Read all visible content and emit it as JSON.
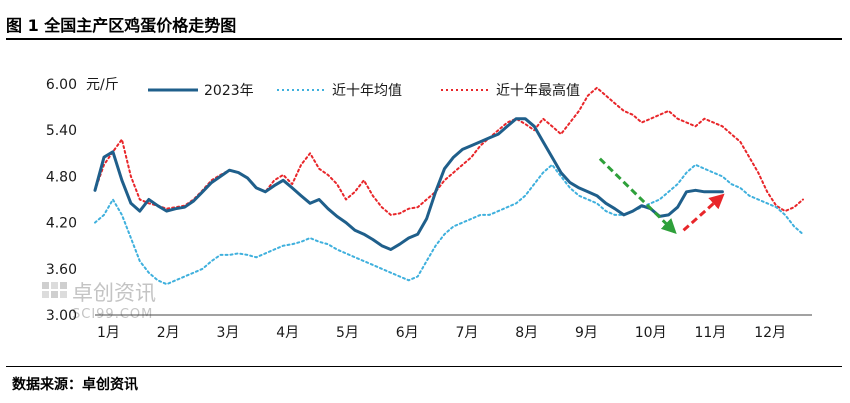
{
  "header": {
    "title": "图 1  全国主产区鸡蛋价格走势图"
  },
  "footer": {
    "source": "数据来源：卓创资讯"
  },
  "watermark": {
    "brand": "卓创资讯",
    "site": "SCI99.COM"
  },
  "chart_data": {
    "type": "line",
    "title": "全国主产区鸡蛋价格走势图",
    "ylabel": "元/斤",
    "ylim": [
      3.0,
      6.0
    ],
    "yticks": [
      "3.00",
      "3.60",
      "4.20",
      "4.80",
      "5.40",
      "6.00"
    ],
    "categories": [
      "1月",
      "2月",
      "3月",
      "4月",
      "5月",
      "6月",
      "7月",
      "8月",
      "9月",
      "10月",
      "11月",
      "12月"
    ],
    "grid": false,
    "legend_position": "top",
    "series": [
      {
        "name": "2023年",
        "color": "#1f5f8b",
        "style": "solid",
        "x": [
          1,
          1.15,
          1.3,
          1.45,
          1.6,
          1.75,
          1.9,
          2.05,
          2.2,
          2.35,
          2.5,
          2.65,
          2.8,
          2.95,
          3.1,
          3.25,
          3.4,
          3.55,
          3.7,
          3.85,
          4.0,
          4.15,
          4.3,
          4.45,
          4.6,
          4.75,
          4.9,
          5.05,
          5.2,
          5.35,
          5.5,
          5.65,
          5.8,
          5.95,
          6.1,
          6.25,
          6.4,
          6.55,
          6.7,
          6.85,
          7.0,
          7.15,
          7.3,
          7.45,
          7.6,
          7.75,
          7.9,
          8.05,
          8.2,
          8.35,
          8.5,
          8.65,
          8.8,
          8.95,
          9.1,
          9.25,
          9.4,
          9.55,
          9.7,
          9.85,
          10.0,
          10.15,
          10.3,
          10.45,
          10.6,
          10.75,
          10.9,
          11.05,
          11.2,
          11.35,
          11.5
        ],
        "values": [
          4.62,
          5.05,
          5.12,
          4.75,
          4.45,
          4.35,
          4.5,
          4.42,
          4.35,
          4.38,
          4.4,
          4.48,
          4.6,
          4.72,
          4.8,
          4.88,
          4.85,
          4.78,
          4.65,
          4.6,
          4.68,
          4.75,
          4.65,
          4.55,
          4.45,
          4.5,
          4.38,
          4.28,
          4.2,
          4.1,
          4.05,
          3.98,
          3.9,
          3.85,
          3.92,
          4.0,
          4.05,
          4.25,
          4.6,
          4.9,
          5.05,
          5.15,
          5.2,
          5.25,
          5.3,
          5.35,
          5.45,
          5.55,
          5.55,
          5.45,
          5.25,
          5.05,
          4.85,
          4.72,
          4.65,
          4.6,
          4.55,
          4.45,
          4.38,
          4.3,
          4.35,
          4.42,
          4.38,
          4.28,
          4.3,
          4.4,
          4.6,
          4.62,
          4.6,
          4.6,
          4.6
        ]
      },
      {
        "name": "近十年均值",
        "color": "#3fb0dd",
        "style": "dotted",
        "x": [
          1,
          1.15,
          1.3,
          1.45,
          1.6,
          1.75,
          1.9,
          2.05,
          2.2,
          2.35,
          2.5,
          2.65,
          2.8,
          2.95,
          3.1,
          3.25,
          3.4,
          3.55,
          3.7,
          3.85,
          4.0,
          4.15,
          4.3,
          4.45,
          4.6,
          4.75,
          4.9,
          5.05,
          5.2,
          5.35,
          5.5,
          5.65,
          5.8,
          5.95,
          6.1,
          6.25,
          6.4,
          6.55,
          6.7,
          6.85,
          7.0,
          7.15,
          7.3,
          7.45,
          7.6,
          7.75,
          7.9,
          8.05,
          8.2,
          8.35,
          8.5,
          8.65,
          8.8,
          8.95,
          9.1,
          9.25,
          9.4,
          9.55,
          9.7,
          9.85,
          10.0,
          10.15,
          10.3,
          10.45,
          10.6,
          10.75,
          10.9,
          11.05,
          11.2,
          11.35,
          11.5,
          11.65,
          11.8,
          11.95,
          12.1,
          12.25,
          12.4,
          12.55,
          12.7,
          12.85
        ],
        "values": [
          4.2,
          4.3,
          4.5,
          4.3,
          4.0,
          3.7,
          3.55,
          3.45,
          3.4,
          3.45,
          3.5,
          3.55,
          3.6,
          3.7,
          3.78,
          3.78,
          3.8,
          3.78,
          3.75,
          3.8,
          3.85,
          3.9,
          3.92,
          3.95,
          4.0,
          3.95,
          3.92,
          3.85,
          3.8,
          3.75,
          3.7,
          3.65,
          3.6,
          3.55,
          3.5,
          3.45,
          3.5,
          3.7,
          3.9,
          4.05,
          4.15,
          4.2,
          4.25,
          4.3,
          4.3,
          4.35,
          4.4,
          4.45,
          4.55,
          4.7,
          4.85,
          4.95,
          4.8,
          4.65,
          4.55,
          4.5,
          4.45,
          4.35,
          4.3,
          4.3,
          4.35,
          4.4,
          4.45,
          4.5,
          4.6,
          4.7,
          4.85,
          4.95,
          4.9,
          4.85,
          4.8,
          4.7,
          4.65,
          4.55,
          4.5,
          4.45,
          4.4,
          4.3,
          4.15,
          4.05
        ]
      },
      {
        "name": "近十年最高值",
        "color": "#e8262a",
        "style": "dotted",
        "x": [
          1,
          1.15,
          1.3,
          1.45,
          1.6,
          1.75,
          1.9,
          2.05,
          2.2,
          2.35,
          2.5,
          2.65,
          2.8,
          2.95,
          3.1,
          3.25,
          3.4,
          3.55,
          3.7,
          3.85,
          4.0,
          4.15,
          4.3,
          4.45,
          4.6,
          4.75,
          4.9,
          5.05,
          5.2,
          5.35,
          5.5,
          5.65,
          5.8,
          5.95,
          6.1,
          6.25,
          6.4,
          6.55,
          6.7,
          6.85,
          7.0,
          7.15,
          7.3,
          7.45,
          7.6,
          7.75,
          7.9,
          8.05,
          8.2,
          8.35,
          8.5,
          8.65,
          8.8,
          8.95,
          9.1,
          9.25,
          9.4,
          9.55,
          9.7,
          9.85,
          10.0,
          10.15,
          10.3,
          10.45,
          10.6,
          10.75,
          10.9,
          11.05,
          11.2,
          11.35,
          11.5,
          11.65,
          11.8,
          11.95,
          12.1,
          12.25,
          12.4,
          12.55,
          12.7,
          12.85
        ],
        "values": [
          4.62,
          4.95,
          5.12,
          5.28,
          4.8,
          4.5,
          4.45,
          4.42,
          4.38,
          4.4,
          4.42,
          4.5,
          4.62,
          4.75,
          4.82,
          4.88,
          4.85,
          4.78,
          4.65,
          4.6,
          4.75,
          4.82,
          4.7,
          4.95,
          5.1,
          4.9,
          4.82,
          4.7,
          4.5,
          4.6,
          4.75,
          4.55,
          4.4,
          4.3,
          4.32,
          4.38,
          4.4,
          4.5,
          4.6,
          4.75,
          4.85,
          4.95,
          5.05,
          5.2,
          5.3,
          5.4,
          5.5,
          5.55,
          5.48,
          5.4,
          5.55,
          5.45,
          5.35,
          5.5,
          5.65,
          5.85,
          5.95,
          5.85,
          5.75,
          5.65,
          5.6,
          5.5,
          5.55,
          5.6,
          5.65,
          5.55,
          5.5,
          5.45,
          5.55,
          5.5,
          5.45,
          5.35,
          5.25,
          5.05,
          4.85,
          4.6,
          4.42,
          4.35,
          4.4,
          4.5
        ]
      }
    ],
    "annotations": [
      {
        "type": "arrow",
        "direction": "down",
        "color": "#2ea03a",
        "style": "dashed",
        "x_start": 9.45,
        "y_start": 5.03,
        "x_end": 10.7,
        "y_end": 4.08
      },
      {
        "type": "arrow",
        "direction": "up",
        "color": "#e8262a",
        "style": "dashed",
        "x_start": 10.85,
        "y_start": 4.1,
        "x_end": 11.5,
        "y_end": 4.55
      }
    ]
  }
}
